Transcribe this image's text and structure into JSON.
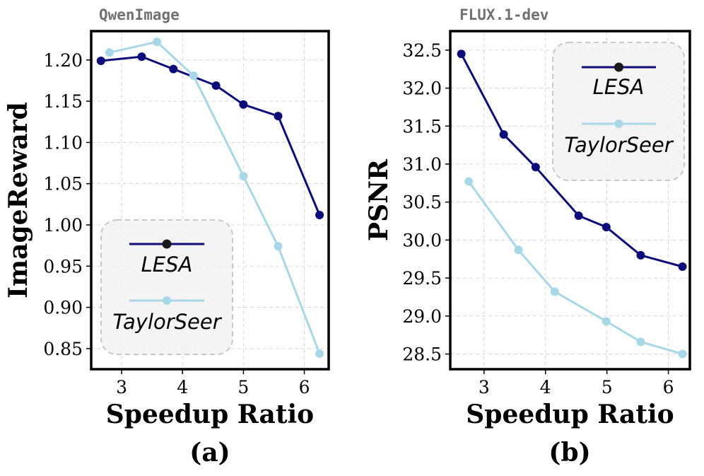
{
  "colors": {
    "lesa": "#0d0d7a",
    "taylorseer": "#a8d8e8",
    "title": "#707070",
    "grid": "#d9d9d9",
    "legend_bg": "#f2f2f2",
    "legend_border": "#c8c8c8"
  },
  "chart_data": [
    {
      "type": "line",
      "title": "QwenImage",
      "xlabel": "Speedup Ratio",
      "ylabel": "ImageReward",
      "caption": "(a)",
      "xlim": [
        2.5,
        6.4
      ],
      "ylim": [
        0.825,
        1.235
      ],
      "xticks": [
        3,
        4,
        5,
        6
      ],
      "yticks": [
        0.85,
        0.9,
        0.95,
        1.0,
        1.05,
        1.1,
        1.15,
        1.2
      ],
      "ytick_labels": [
        "0.85",
        "0.90",
        "0.95",
        "1.00",
        "1.05",
        "1.10",
        "1.15",
        "1.20"
      ],
      "grid": true,
      "legend_position": "lower-left",
      "series": [
        {
          "name": "LESA",
          "x": [
            2.66,
            3.33,
            3.85,
            4.55,
            5.0,
            5.57,
            6.25
          ],
          "y": [
            1.199,
            1.204,
            1.189,
            1.169,
            1.146,
            1.132,
            1.012
          ]
        },
        {
          "name": "TaylorSeer",
          "x": [
            2.8,
            3.58,
            4.18,
            5.0,
            5.57,
            6.25
          ],
          "y": [
            1.209,
            1.222,
            1.181,
            1.059,
            0.974,
            0.844
          ]
        }
      ]
    },
    {
      "type": "line",
      "title": "FLUX.1-dev",
      "xlabel": "Speedup Ratio",
      "ylabel": "PSNR",
      "caption": "(b)",
      "xlim": [
        2.45,
        6.35
      ],
      "ylim": [
        28.3,
        32.75
      ],
      "xticks": [
        3,
        4,
        5,
        6
      ],
      "yticks": [
        28.5,
        29.0,
        29.5,
        30.0,
        30.5,
        31.0,
        31.5,
        32.0,
        32.5
      ],
      "ytick_labels": [
        "28.5",
        "29.0",
        "29.5",
        "30.0",
        "30.5",
        "31.0",
        "31.5",
        "32.0",
        "32.5"
      ],
      "grid": true,
      "legend_position": "upper-right",
      "series": [
        {
          "name": "LESA",
          "x": [
            2.63,
            3.32,
            3.84,
            4.54,
            4.99,
            5.55,
            6.23
          ],
          "y": [
            32.45,
            31.39,
            30.96,
            30.32,
            30.17,
            29.8,
            29.65
          ]
        },
        {
          "name": "TaylorSeer",
          "x": [
            2.75,
            3.56,
            4.15,
            4.99,
            5.55,
            6.23
          ],
          "y": [
            30.77,
            29.87,
            29.32,
            28.93,
            28.66,
            28.5
          ]
        }
      ]
    }
  ]
}
